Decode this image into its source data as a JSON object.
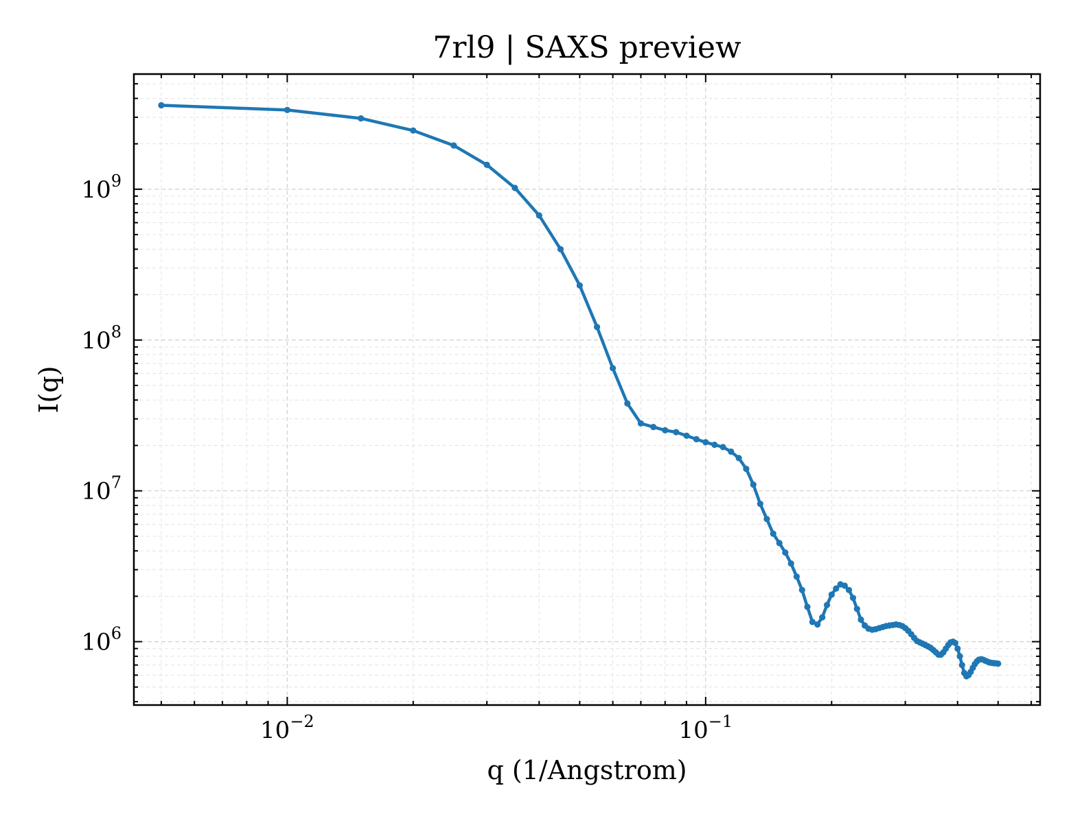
{
  "chart_data": {
    "type": "line",
    "title": "7rl9 | SAXS preview",
    "xlabel": "q (1/Angstrom)",
    "ylabel": "I(q)",
    "xscale": "log",
    "yscale": "log",
    "xlim": [
      0.0043,
      0.63
    ],
    "ylim": [
      380000,
      5800000000
    ],
    "grid": true,
    "xticks": [
      {
        "value": 0.01,
        "base": "10",
        "exp": "−2"
      },
      {
        "value": 0.1,
        "base": "10",
        "exp": "−1"
      }
    ],
    "yticks": [
      {
        "value": 1000000,
        "base": "10",
        "exp": "6"
      },
      {
        "value": 10000000,
        "base": "10",
        "exp": "7"
      },
      {
        "value": 100000000,
        "base": "10",
        "exp": "8"
      },
      {
        "value": 1000000000,
        "base": "10",
        "exp": "9"
      }
    ],
    "series": [
      {
        "color": "#1f77b4",
        "x": [
          0.005,
          0.01,
          0.015,
          0.02,
          0.025,
          0.03,
          0.035,
          0.04,
          0.045,
          0.05,
          0.055,
          0.06,
          0.065,
          0.07,
          0.075,
          0.08,
          0.085,
          0.09,
          0.095,
          0.1,
          0.105,
          0.11,
          0.115,
          0.12,
          0.125,
          0.13,
          0.135,
          0.14,
          0.145,
          0.15,
          0.155,
          0.16,
          0.165,
          0.17,
          0.175,
          0.18,
          0.185,
          0.19,
          0.195,
          0.2,
          0.205,
          0.21,
          0.215,
          0.22,
          0.225,
          0.23,
          0.235,
          0.24,
          0.245,
          0.25,
          0.255,
          0.26,
          0.265,
          0.27,
          0.275,
          0.28,
          0.285,
          0.29,
          0.295,
          0.3,
          0.305,
          0.31,
          0.315,
          0.32,
          0.325,
          0.33,
          0.335,
          0.34,
          0.345,
          0.35,
          0.355,
          0.36,
          0.365,
          0.37,
          0.375,
          0.38,
          0.385,
          0.39,
          0.395,
          0.4,
          0.405,
          0.41,
          0.415,
          0.42,
          0.425,
          0.43,
          0.435,
          0.44,
          0.445,
          0.45,
          0.455,
          0.46,
          0.465,
          0.47,
          0.475,
          0.48,
          0.485,
          0.49,
          0.495,
          0.5
        ],
        "y": [
          3600000000,
          3350000000,
          2950000000,
          2450000000,
          1950000000,
          1450000000,
          1020000000,
          670000000,
          400000000,
          230000000,
          122000000,
          65000000,
          38000000,
          28000000,
          26500000,
          25200000,
          24500000,
          23200000,
          22000000,
          21000000,
          20200000,
          19500000,
          18200000,
          16500000,
          14000000,
          11000000,
          8200000,
          6500000,
          5200000,
          4500000,
          3900000,
          3300000,
          2700000,
          2200000,
          1700000,
          1350000,
          1300000,
          1450000,
          1750000,
          2050000,
          2250000,
          2400000,
          2350000,
          2200000,
          1950000,
          1650000,
          1400000,
          1280000,
          1220000,
          1200000,
          1210000,
          1230000,
          1250000,
          1270000,
          1280000,
          1290000,
          1300000,
          1290000,
          1270000,
          1230000,
          1180000,
          1120000,
          1060000,
          1010000,
          990000,
          970000,
          950000,
          930000,
          910000,
          880000,
          850000,
          820000,
          820000,
          850000,
          900000,
          950000,
          990000,
          1000000,
          980000,
          900000,
          800000,
          700000,
          620000,
          590000,
          600000,
          630000,
          670000,
          710000,
          740000,
          760000,
          765000,
          760000,
          750000,
          740000,
          730000,
          725000,
          722000,
          720000,
          718000,
          715000
        ]
      }
    ]
  }
}
